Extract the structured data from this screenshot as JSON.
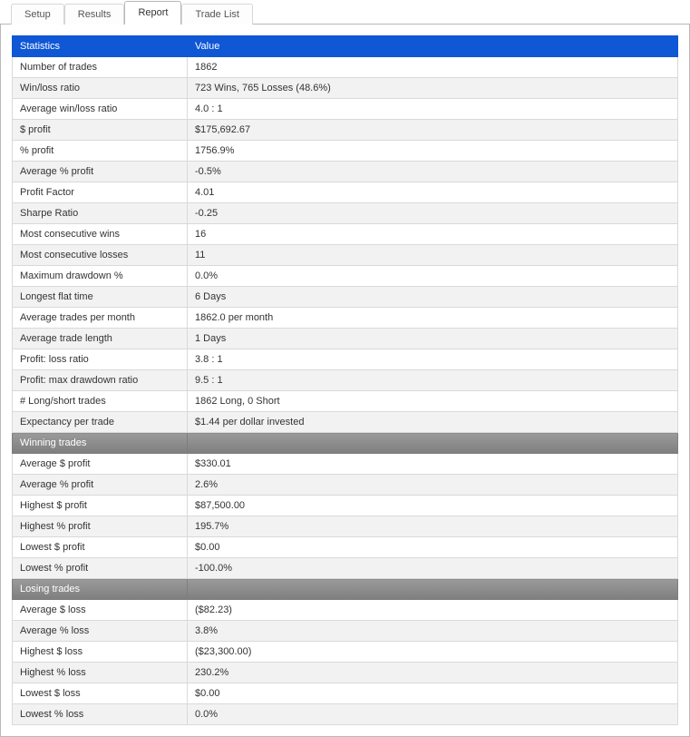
{
  "tabs": {
    "setup": "Setup",
    "results": "Results",
    "report": "Report",
    "tradelist": "Trade List",
    "active": "report"
  },
  "table": {
    "headers": {
      "stat": "Statistics",
      "value": "Value"
    },
    "sections": {
      "winning": "Winning trades",
      "losing": "Losing trades"
    },
    "rows": {
      "num_trades": {
        "label": "Number of trades",
        "value": "1862"
      },
      "win_loss": {
        "label": "Win/loss ratio",
        "value": "723 Wins, 765 Losses (48.6%)"
      },
      "avg_win_loss": {
        "label": "Average win/loss ratio",
        "value": "4.0 : 1"
      },
      "dollar_profit": {
        "label": "$ profit",
        "value": "$175,692.67"
      },
      "pct_profit": {
        "label": "% profit",
        "value": "1756.9%"
      },
      "avg_pct_profit": {
        "label": "Average % profit",
        "value": "-0.5%",
        "neg": true
      },
      "profit_factor": {
        "label": "Profit Factor",
        "value": "4.01"
      },
      "sharpe": {
        "label": "Sharpe Ratio",
        "value": "-0.25",
        "neg": true
      },
      "consec_wins": {
        "label": "Most consecutive wins",
        "value": "16"
      },
      "consec_losses": {
        "label": "Most consecutive losses",
        "value": "11"
      },
      "max_dd": {
        "label": "Maximum drawdown %",
        "value": "0.0%"
      },
      "flat_time": {
        "label": "Longest flat time",
        "value": "6 Days"
      },
      "avg_trades_month": {
        "label": "Average trades per month",
        "value": "1862.0 per month"
      },
      "avg_trade_len": {
        "label": "Average trade length",
        "value": "1 Days"
      },
      "profit_loss_ratio": {
        "label": "Profit: loss ratio",
        "value": "3.8 : 1"
      },
      "profit_maxdd_ratio": {
        "label": "Profit: max drawdown ratio",
        "value": "9.5 : 1"
      },
      "long_short": {
        "label": "# Long/short trades",
        "value": "1862 Long, 0 Short"
      },
      "expectancy": {
        "label": "Expectancy per trade",
        "value": "$1.44 per dollar invested"
      },
      "w_avg_dollar": {
        "label": "Average $ profit",
        "value": "$330.01"
      },
      "w_avg_pct": {
        "label": "Average % profit",
        "value": "2.6%"
      },
      "w_high_dollar": {
        "label": "Highest $ profit",
        "value": "$87,500.00"
      },
      "w_high_pct": {
        "label": "Highest % profit",
        "value": "195.7%"
      },
      "w_low_dollar": {
        "label": "Lowest $ profit",
        "value": "$0.00"
      },
      "w_low_pct": {
        "label": "Lowest % profit",
        "value": "-100.0%",
        "neg": true
      },
      "l_avg_dollar": {
        "label": "Average $ loss",
        "value": "($82.23)"
      },
      "l_avg_pct": {
        "label": "Average % loss",
        "value": "3.8%"
      },
      "l_high_dollar": {
        "label": "Highest $ loss",
        "value": "($23,300.00)"
      },
      "l_high_pct": {
        "label": "Highest % loss",
        "value": "230.2%"
      },
      "l_low_dollar": {
        "label": "Lowest $ loss",
        "value": "$0.00"
      },
      "l_low_pct": {
        "label": "Lowest % loss",
        "value": "0.0%"
      }
    },
    "colors": {
      "header_bg": "#0f57d5",
      "header_fg": "#ffffff",
      "section_bg_top": "#9a9a9a",
      "section_bg_bot": "#7e7e7e",
      "row_even": "#f2f2f2",
      "row_odd": "#ffffff",
      "border": "#d9d9d9",
      "neg": "#c00000"
    }
  }
}
